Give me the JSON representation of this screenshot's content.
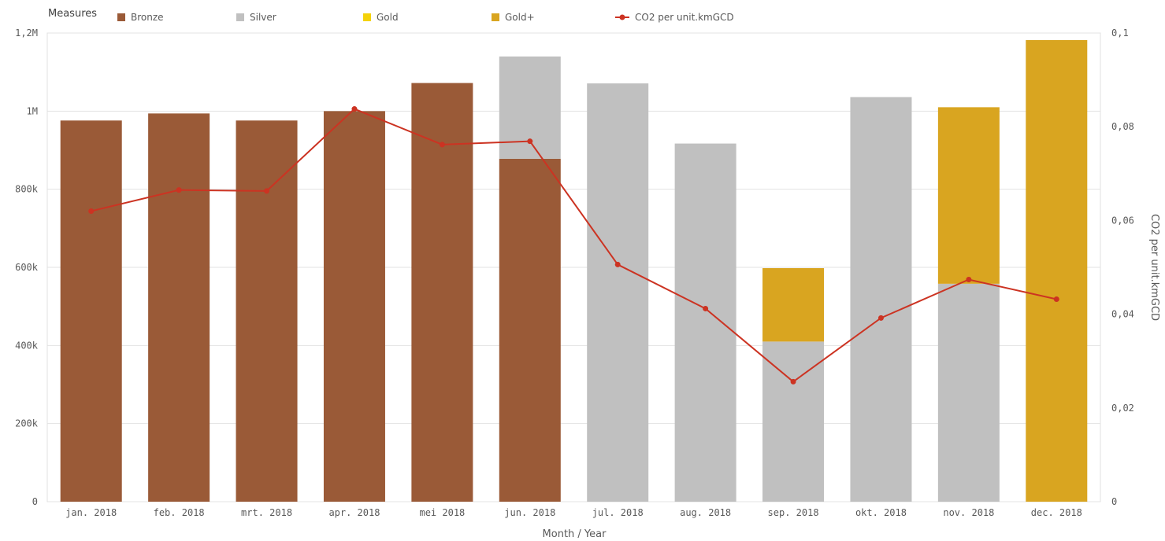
{
  "chart_data": {
    "type": "bar",
    "stacked": true,
    "legend_title": "Measures",
    "legend_position": "top-left",
    "categories": [
      "jan. 2018",
      "feb. 2018",
      "mrt. 2018",
      "apr. 2018",
      "mei 2018",
      "jun. 2018",
      "jul. 2018",
      "aug. 2018",
      "sep. 2018",
      "okt. 2018",
      "nov. 2018",
      "dec. 2018"
    ],
    "series": [
      {
        "name": "Bronze",
        "color": "#9a5a37",
        "values": [
          976000,
          994000,
          976000,
          1000000,
          1072000,
          878000,
          0,
          0,
          0,
          0,
          0,
          0
        ]
      },
      {
        "name": "Silver",
        "color": "#c0c0c0",
        "values": [
          0,
          0,
          0,
          0,
          0,
          262000,
          1071000,
          917000,
          410000,
          1036000,
          558000,
          0
        ]
      },
      {
        "name": "Gold",
        "color": "#f4d20a",
        "values": [
          0,
          0,
          0,
          0,
          0,
          0,
          0,
          0,
          0,
          0,
          0,
          0
        ]
      },
      {
        "name": "Gold+",
        "color": "#d9a520",
        "values": [
          0,
          0,
          0,
          0,
          0,
          0,
          0,
          0,
          188000,
          0,
          452000,
          1182000
        ]
      }
    ],
    "line_series": {
      "name": "CO2 per unit.kmGCD",
      "color": "#cc3322",
      "axis": "right",
      "values": [
        0.062,
        0.0665,
        0.0663,
        0.0838,
        0.0762,
        0.0769,
        0.0506,
        0.0412,
        0.0256,
        0.0392,
        0.0474,
        0.0432
      ]
    },
    "y_left": {
      "min": 0,
      "max": 1200000,
      "ticks": [
        0,
        200000,
        400000,
        600000,
        800000,
        1000000,
        1200000
      ],
      "tick_labels": [
        "0",
        "200k",
        "400k",
        "600k",
        "800k",
        "1M",
        "1,2M"
      ]
    },
    "y_right": {
      "min": 0,
      "max": 0.1,
      "ticks": [
        0,
        0.02,
        0.04,
        0.06,
        0.08,
        0.1
      ],
      "tick_labels": [
        "0",
        "0,02",
        "0,04",
        "0,06",
        "0,08",
        "0,1"
      ],
      "label": "CO2 per unit.kmGCD"
    },
    "xlabel": "Month / Year",
    "grid": true
  }
}
